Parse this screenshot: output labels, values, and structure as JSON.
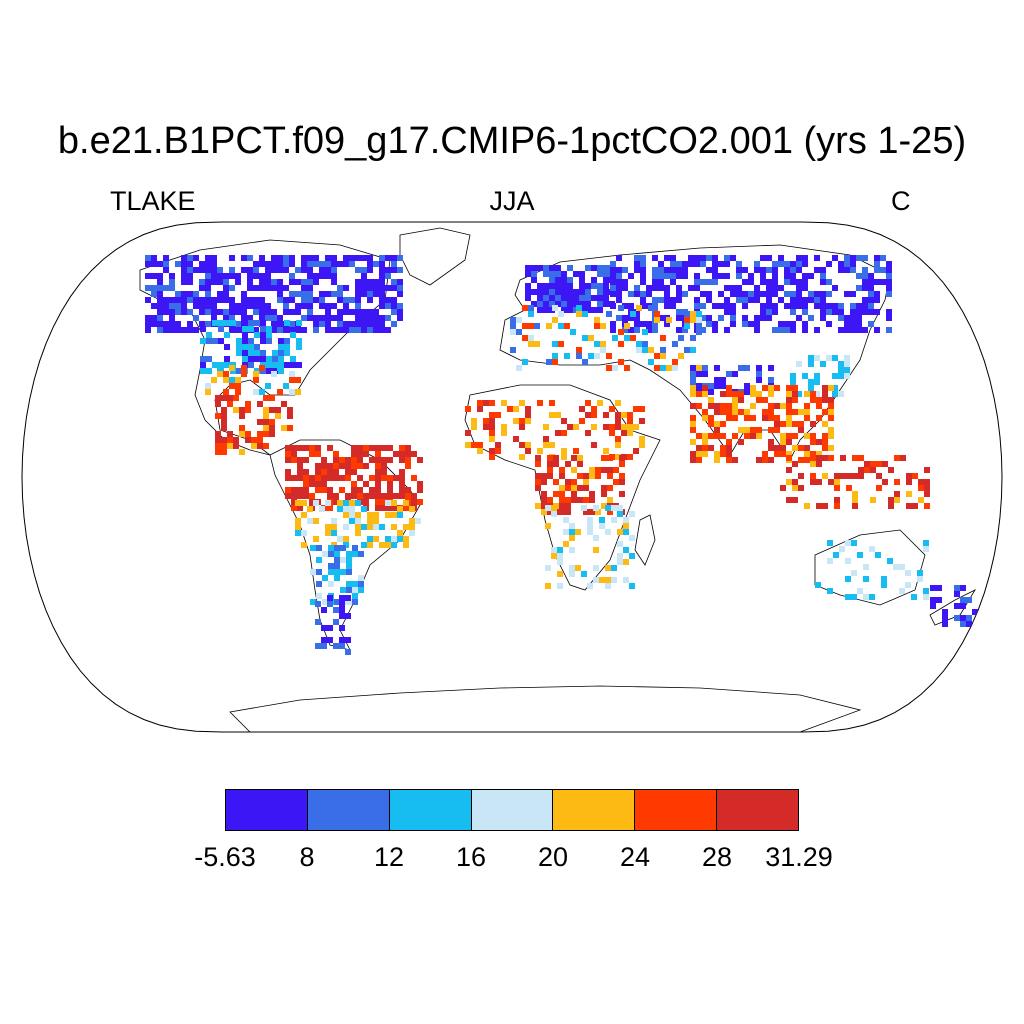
{
  "title": "b.e21.B1PCT.f09_g17.CMIP6-1pctCO2.001 (yrs 1-25)",
  "subtitles": {
    "left": "TLAKE",
    "center": "JJA",
    "right": "C"
  },
  "colorbar": {
    "colors": [
      "#3c16f4",
      "#3a6ee8",
      "#17bdf0",
      "#c8e6f6",
      "#fcba12",
      "#ff3a00",
      "#d42a28"
    ],
    "labels": [
      "-5.63",
      "8",
      "12",
      "16",
      "20",
      "24",
      "28",
      "31.29"
    ]
  }
}
